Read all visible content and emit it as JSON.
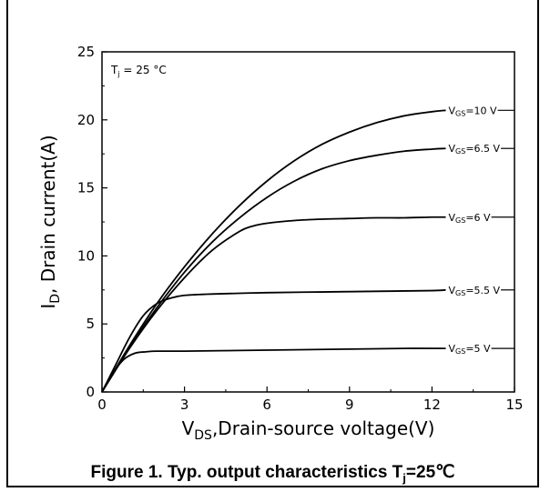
{
  "chart_data": {
    "type": "line",
    "title": "",
    "annotation": {
      "main": "T",
      "sub": "j",
      "rest": " = 25 °C"
    },
    "xlabel": {
      "main": "V",
      "sub": "DS",
      "rest": ",Drain-source voltage(V)"
    },
    "ylabel": {
      "main": "I",
      "sub": "D",
      "rest": ", Drain current(A)"
    },
    "xlim": [
      0,
      15
    ],
    "ylim": [
      0,
      25
    ],
    "xticks": [
      0,
      3,
      6,
      9,
      12,
      15
    ],
    "yticks": [
      0,
      5,
      10,
      15,
      20,
      25
    ],
    "grid": false,
    "series": [
      {
        "name": "VGS=10 V",
        "label": {
          "main": "V",
          "sub": "GS",
          "rest": "=10 V"
        },
        "x": [
          0,
          1,
          2,
          3,
          4,
          5,
          6,
          7,
          8,
          9,
          10,
          11,
          12,
          12.5
        ],
        "y": [
          0,
          3.4,
          6.5,
          9.2,
          11.6,
          13.7,
          15.5,
          17.0,
          18.2,
          19.1,
          19.8,
          20.3,
          20.6,
          20.7
        ]
      },
      {
        "name": "VGS=6.5 V",
        "label": {
          "main": "V",
          "sub": "GS",
          "rest": "=6.5 V"
        },
        "x": [
          0,
          1,
          2,
          3,
          4,
          5,
          6,
          7,
          8,
          9,
          10,
          11,
          12,
          12.5
        ],
        "y": [
          0,
          3.3,
          6.2,
          8.8,
          11.0,
          12.8,
          14.3,
          15.5,
          16.4,
          17.0,
          17.4,
          17.7,
          17.85,
          17.9
        ]
      },
      {
        "name": "VGS=6 V",
        "label": {
          "main": "V",
          "sub": "GS",
          "rest": "=6 V"
        },
        "x": [
          0,
          1,
          2,
          3,
          4,
          5,
          5.5,
          6,
          7,
          8,
          9,
          10,
          11,
          12,
          12.5
        ],
        "y": [
          0,
          3.2,
          6.0,
          8.4,
          10.4,
          11.8,
          12.2,
          12.4,
          12.6,
          12.7,
          12.75,
          12.8,
          12.8,
          12.85,
          12.85
        ]
      },
      {
        "name": "VGS=5.5 V",
        "label": {
          "main": "V",
          "sub": "GS",
          "rest": "=5.5 V"
        },
        "x": [
          0,
          0.5,
          1,
          1.5,
          2,
          2.5,
          3,
          4,
          6,
          8,
          10,
          12,
          12.5
        ],
        "y": [
          0,
          2.0,
          4.0,
          5.6,
          6.5,
          6.9,
          7.1,
          7.2,
          7.3,
          7.35,
          7.4,
          7.45,
          7.5
        ]
      },
      {
        "name": "VGS=5 V",
        "label": {
          "main": "V",
          "sub": "GS",
          "rest": "=5 V"
        },
        "x": [
          0,
          0.4,
          0.8,
          1.2,
          1.6,
          2,
          3,
          5,
          7,
          9,
          11,
          12.5
        ],
        "y": [
          0,
          1.4,
          2.4,
          2.85,
          2.95,
          3.0,
          3.0,
          3.05,
          3.1,
          3.15,
          3.2,
          3.2
        ]
      }
    ]
  },
  "caption": {
    "text": "Figure 1. Typ. output characteristics T",
    "sub": "j",
    "rest": "=25℃"
  }
}
